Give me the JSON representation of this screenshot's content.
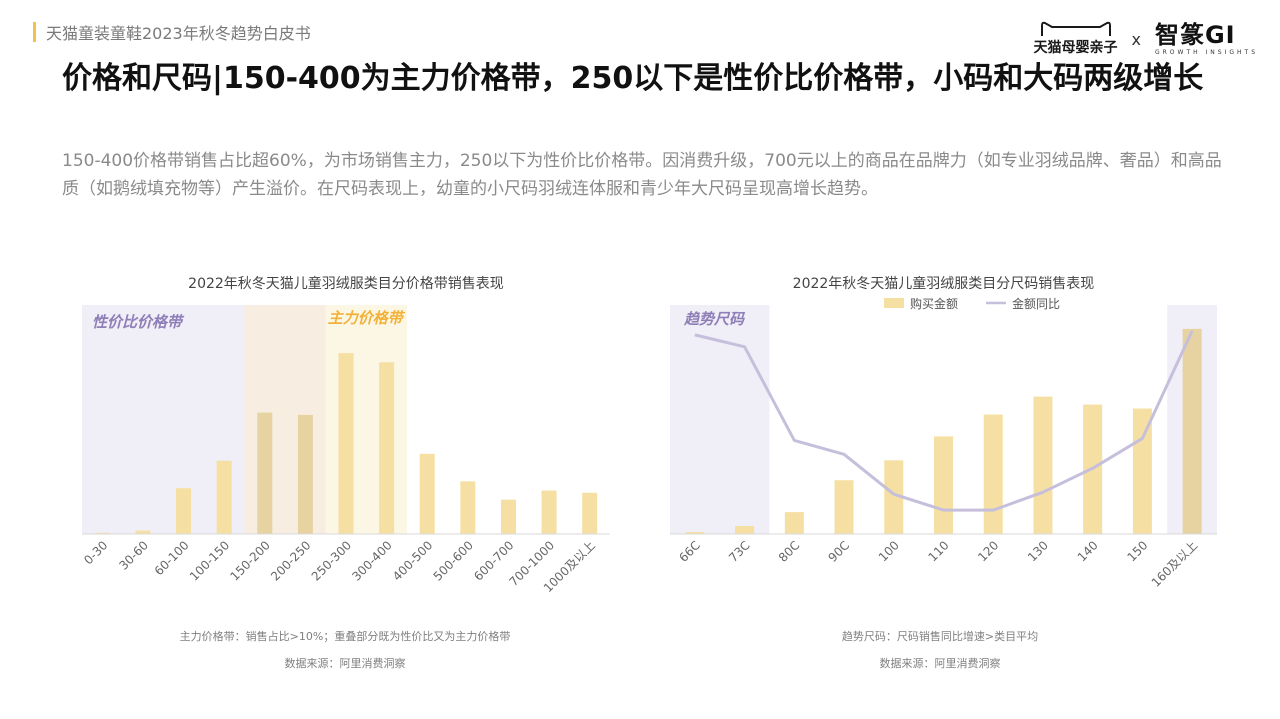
{
  "header": {
    "title": "天猫童装童鞋2023年秋冬趋势白皮书"
  },
  "brand": {
    "tmall": "天猫母婴亲子",
    "x": "x",
    "zz": "智篆GI",
    "zz_sub": "GROWTH INSIGHTS"
  },
  "main": {
    "title": "价格和尺码|150-400为主力价格带，250以下是性价比价格带，小码和大码两级增长",
    "description": "150-400价格带销售占比超60%，为市场销售主力，250以下为性价比价格带。因消费升级，700元以上的商品在品牌力（如专业羽绒品牌、奢品）和高品质（如鹅绒填充物等）产生溢价。在尺码表现上，幼童的小尺码羽绒连体服和青少年大尺码呈现高增长趋势。"
  },
  "colors": {
    "bar": "#f5dfa2",
    "bar_highlight": "#e7d2a1",
    "line": "#c6bfdc",
    "zone_value": "#f0eef6",
    "zone_overlap": "#f7ede0",
    "zone_main": "#fcf6e5",
    "zone_purple_text": "#8e7fb8",
    "zone_gold_text": "#f2b23a"
  },
  "notes": {
    "left": "主力价格带：销售占比>10%；重叠部分既为性价比又为主力价格带",
    "left_source": "数据来源：阿里消费洞察",
    "right": "趋势尺码：尺码销售同比增速>类目平均",
    "right_source": "数据来源：阿里消费洞察"
  },
  "chart_data": [
    {
      "type": "bar",
      "title": "2022年秋冬天猫儿童羽绒服类目分价格带销售表现",
      "categories": [
        "0-30",
        "30-60",
        "60-100",
        "100-150",
        "150-200",
        "200-250",
        "250-300",
        "300-400",
        "400-500",
        "500-600",
        "600-700",
        "700-1000",
        "1000及以上"
      ],
      "values": [
        0.5,
        1.5,
        20,
        32,
        53,
        52,
        79,
        75,
        35,
        23,
        15,
        19,
        18
      ],
      "value_unit": "relative (no axis printed)",
      "ylim": [
        0,
        100
      ],
      "grid": false,
      "zones": [
        {
          "label": "性价比价格带",
          "from": "0-30",
          "to": "200-250"
        },
        {
          "label": "主力价格带",
          "from": "150-200",
          "to": "300-400"
        }
      ]
    },
    {
      "type": "bar+line",
      "title": "2022年秋冬天猫儿童羽绒服类目分尺码销售表现",
      "categories": [
        "66C",
        "73C",
        "80C",
        "90C",
        "100",
        "110",
        "120",
        "130",
        "140",
        "150",
        "160及以上"
      ],
      "series": [
        {
          "name": "购买金额",
          "type": "bar",
          "values": [
            1,
            4,
            11,
            27,
            37,
            49,
            60,
            69,
            65,
            63,
            103
          ]
        },
        {
          "name": "金额同比",
          "type": "line",
          "values": [
            100,
            94,
            47,
            40,
            20,
            12,
            12,
            21,
            33,
            48,
            102
          ]
        }
      ],
      "ylim": [
        0,
        115
      ],
      "grid": false,
      "legend": "top-center",
      "zones": [
        {
          "label": "趋势尺码",
          "from": "66C",
          "to": "73C"
        },
        {
          "label": "",
          "from": "160及以上",
          "to": "160及以上"
        }
      ]
    }
  ]
}
